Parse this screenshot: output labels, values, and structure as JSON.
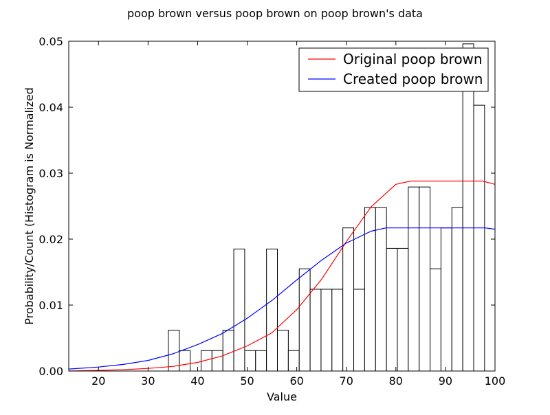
{
  "chart_data": {
    "type": "bar",
    "title": "poop brown versus poop brown on poop brown's data",
    "xlabel": "Value",
    "ylabel": "Probability/Count (Histogram is Normalized",
    "xlim": [
      14,
      100
    ],
    "ylim": [
      0,
      0.05
    ],
    "xticks": [
      20,
      30,
      40,
      50,
      60,
      70,
      80,
      90,
      100
    ],
    "yticks": [
      0.0,
      0.01,
      0.02,
      0.03,
      0.04,
      0.05
    ],
    "ytick_labels": [
      "0.00",
      "0.01",
      "0.02",
      "0.03",
      "0.04",
      "0.05"
    ],
    "grid": false,
    "legend_position": "top-right",
    "histogram": {
      "bin_edges": [
        34.1,
        36.3,
        38.5,
        40.7,
        42.9,
        45.1,
        47.3,
        49.5,
        51.7,
        53.9,
        56.1,
        58.3,
        60.5,
        62.7,
        64.9,
        67.1,
        69.3,
        71.5,
        73.7,
        75.9,
        78.1,
        80.3,
        82.5,
        84.7,
        86.9,
        89.1,
        91.3,
        93.5,
        95.7,
        97.9,
        100.1
      ],
      "values": [
        0.0062,
        0.0031,
        0.0,
        0.0031,
        0.0031,
        0.0062,
        0.0185,
        0.0031,
        0.0031,
        0.0185,
        0.0062,
        0.0031,
        0.0155,
        0.0124,
        0.0124,
        0.0124,
        0.0217,
        0.0124,
        0.0248,
        0.0248,
        0.0186,
        0.0186,
        0.0279,
        0.0279,
        0.0155,
        0.0217,
        0.0248,
        0.0496,
        0.0403,
        0.0
      ],
      "fill": "#ffffff",
      "edge_color": "#000000"
    },
    "series": [
      {
        "name": "Original poop brown",
        "color": "#ff0000",
        "type": "line",
        "x": [
          14,
          20,
          25,
          30,
          35,
          40,
          45,
          50,
          55,
          60,
          65,
          70,
          75,
          80,
          83,
          85,
          90,
          95,
          97.5,
          100
        ],
        "y": [
          0.0,
          0.0001,
          0.0002,
          0.0004,
          0.0007,
          0.0013,
          0.0023,
          0.0038,
          0.0058,
          0.0093,
          0.0139,
          0.0196,
          0.0249,
          0.0283,
          0.0288,
          0.0288,
          0.0288,
          0.0288,
          0.0288,
          0.0283
        ]
      },
      {
        "name": "Created poop brown",
        "color": "#0000ff",
        "type": "line",
        "x": [
          14,
          20,
          25,
          30,
          35,
          40,
          45,
          50,
          55,
          60,
          65,
          70,
          75,
          78,
          80,
          85,
          90,
          95,
          98,
          100
        ],
        "y": [
          0.0003,
          0.0006,
          0.001,
          0.0016,
          0.0026,
          0.004,
          0.0057,
          0.008,
          0.0107,
          0.0138,
          0.0168,
          0.0194,
          0.0212,
          0.0217,
          0.0217,
          0.0217,
          0.0217,
          0.0217,
          0.0217,
          0.0215
        ]
      }
    ]
  }
}
